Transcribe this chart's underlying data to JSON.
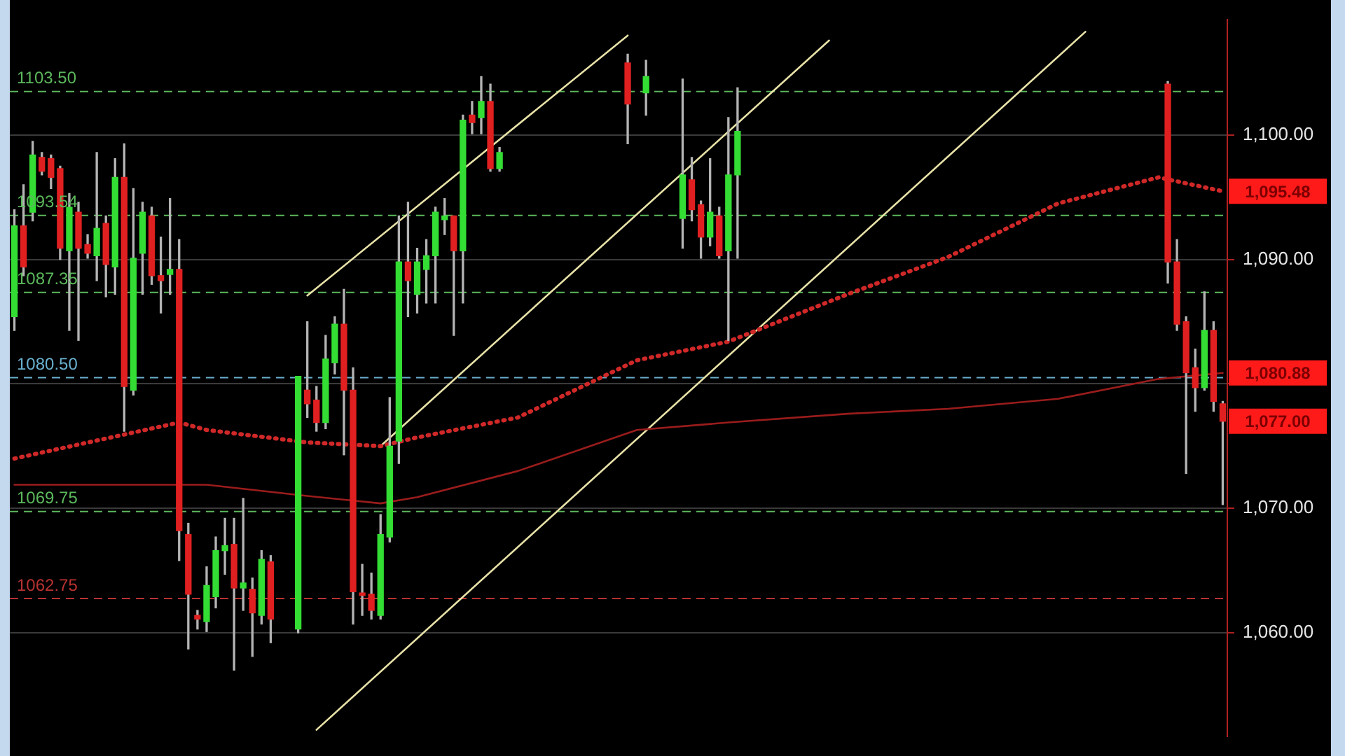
{
  "chart_data": {
    "type": "candlestick",
    "categories": [
      null,
      null,
      null,
      null,
      null,
      null,
      null,
      null,
      null,
      null,
      null,
      null,
      null,
      null,
      null,
      null,
      null,
      null,
      null,
      null,
      null,
      null,
      null,
      null,
      null,
      null,
      null,
      null,
      null,
      null,
      null,
      null,
      null,
      null,
      null,
      null,
      null,
      null,
      null,
      null,
      null,
      null,
      null,
      null,
      null,
      null,
      null,
      null,
      null,
      null,
      null,
      null,
      null,
      null,
      null,
      null,
      null,
      null,
      null,
      null,
      null,
      null,
      null,
      null,
      null,
      null,
      null,
      null,
      null,
      null,
      null,
      null,
      null,
      null,
      null,
      null,
      null,
      null,
      null,
      null,
      null,
      null,
      null,
      null,
      null,
      null,
      null,
      null,
      null,
      null,
      null,
      null,
      null,
      null,
      null,
      null,
      null,
      null,
      null,
      null,
      null,
      null,
      null,
      null,
      null,
      null,
      null,
      null,
      null,
      null,
      null,
      null,
      null,
      null,
      null,
      null,
      null,
      null,
      null,
      null,
      null,
      null,
      null,
      null,
      null,
      null,
      null,
      null,
      null,
      null,
      null,
      null,
      null
    ],
    "ohlc": [
      [
        1085.4,
        1094.0,
        1084.3,
        1092.7
      ],
      [
        1092.7,
        1096.0,
        1088.7,
        1089.4
      ],
      [
        1093.8,
        1099.5,
        1093.1,
        1098.4
      ],
      [
        1098.2,
        1098.6,
        1096.8,
        1097.1
      ],
      [
        1098.1,
        1098.4,
        1095.7,
        1096.6
      ],
      [
        1097.3,
        1097.5,
        1090.0,
        1090.9
      ],
      [
        1090.7,
        1095.3,
        1084.3,
        1094.2
      ],
      [
        1093.8,
        1094.6,
        1083.5,
        1090.9
      ],
      [
        1091.2,
        1092.0,
        1090.1,
        1090.5
      ],
      [
        1090.3,
        1098.6,
        1088.3,
        1092.5
      ],
      [
        1092.9,
        1093.5,
        1087.0,
        1089.6
      ],
      [
        1089.4,
        1098.1,
        1087.2,
        1096.6
      ],
      [
        1096.6,
        1099.3,
        1076.2,
        1079.8
      ],
      [
        1079.5,
        1095.7,
        1079.1,
        1090.1
      ],
      [
        1090.5,
        1094.6,
        1087.2,
        1093.8
      ],
      [
        1093.5,
        1094.2,
        1088.0,
        1088.7
      ],
      [
        1088.7,
        1091.8,
        1085.7,
        1088.3
      ],
      [
        1088.8,
        1094.9,
        1087.2,
        1089.2
      ],
      [
        1089.2,
        1091.6,
        1065.8,
        1068.2
      ],
      [
        1067.9,
        1068.8,
        1058.7,
        1063.1
      ],
      [
        1061.4,
        1061.8,
        1060.3,
        1061.1
      ],
      [
        1060.9,
        1065.3,
        1060.1,
        1063.8
      ],
      [
        1062.9,
        1067.7,
        1062.0,
        1066.6
      ],
      [
        1066.6,
        1069.2,
        1064.7,
        1067.0
      ],
      [
        1067.1,
        1069.2,
        1057.0,
        1063.6
      ],
      [
        1063.6,
        1070.8,
        1061.8,
        1064.0
      ],
      [
        1063.5,
        1064.4,
        1058.1,
        1061.6
      ],
      [
        1061.4,
        1066.6,
        1060.7,
        1065.9
      ],
      [
        1065.7,
        1066.2,
        1059.2,
        1061.1
      ],
      null,
      null,
      [
        1060.3,
        1080.6,
        1060.0,
        1080.6
      ],
      [
        1079.5,
        1085.0,
        1077.3,
        1078.4
      ],
      [
        1078.7,
        1079.8,
        1076.2,
        1076.9
      ],
      [
        1076.9,
        1083.9,
        1076.4,
        1082.0
      ],
      [
        1081.7,
        1085.4,
        1080.8,
        1084.8
      ],
      [
        1084.8,
        1087.6,
        1074.3,
        1079.5
      ],
      [
        1079.5,
        1081.3,
        1060.7,
        1063.3
      ],
      [
        1063.2,
        1065.5,
        1061.4,
        1063.0
      ],
      [
        1063.1,
        1064.8,
        1061.1,
        1061.8
      ],
      [
        1061.4,
        1069.5,
        1061.1,
        1067.9
      ],
      [
        1067.7,
        1078.9,
        1067.3,
        1075.0
      ],
      [
        1075.4,
        1093.5,
        1073.6,
        1089.8
      ],
      [
        1089.8,
        1094.6,
        1085.4,
        1088.3
      ],
      [
        1087.2,
        1090.9,
        1085.7,
        1089.8
      ],
      [
        1089.2,
        1091.6,
        1086.5,
        1090.3
      ],
      [
        1090.3,
        1094.2,
        1086.5,
        1093.8
      ],
      [
        1093.2,
        1094.9,
        1092.0,
        1093.5
      ],
      [
        1093.5,
        1093.5,
        1083.9,
        1090.7
      ],
      [
        1090.7,
        1101.6,
        1086.5,
        1101.2
      ],
      [
        1101.6,
        1102.7,
        1100.1,
        1101.0
      ],
      [
        1101.4,
        1104.7,
        1100.1,
        1102.7
      ],
      [
        1102.7,
        1104.1,
        1097.1,
        1097.3
      ],
      [
        1097.3,
        1099.0,
        1097.1,
        1098.6
      ],
      null,
      null,
      null,
      null,
      null,
      null,
      null,
      null,
      null,
      null,
      null,
      null,
      null,
      [
        1105.8,
        1106.5,
        1099.3,
        1102.5
      ],
      null,
      [
        1103.4,
        1106.0,
        1101.6,
        1104.7
      ],
      null,
      null,
      null,
      [
        1093.3,
        1104.5,
        1090.9,
        1096.8
      ],
      [
        1096.4,
        1098.2,
        1093.1,
        1094.0
      ],
      [
        1094.4,
        1094.7,
        1090.1,
        1091.8
      ],
      [
        1091.8,
        1098.1,
        1091.1,
        1093.8
      ],
      [
        1093.5,
        1094.2,
        1090.1,
        1090.3
      ],
      [
        1090.7,
        1101.4,
        1083.5,
        1096.8
      ],
      [
        1096.8,
        1103.8,
        1090.1,
        1100.3
      ],
      null,
      null,
      null,
      null,
      null,
      null,
      null,
      null,
      null,
      null,
      null,
      null,
      null,
      null,
      null,
      null,
      null,
      null,
      null,
      null,
      null,
      null,
      null,
      null,
      null,
      null,
      null,
      null,
      null,
      null,
      null,
      null,
      null,
      null,
      null,
      null,
      null,
      null,
      null,
      null,
      null,
      null,
      null,
      null,
      null,
      null,
      [
        1104.1,
        1104.3,
        1088.1,
        1089.8
      ],
      [
        1089.8,
        1091.6,
        1084.3,
        1084.8
      ],
      [
        1085.0,
        1085.4,
        1072.8,
        1080.9
      ],
      [
        1081.3,
        1082.8,
        1077.8,
        1079.7
      ],
      [
        1079.7,
        1087.4,
        1079.5,
        1084.3
      ],
      [
        1084.3,
        1085.0,
        1077.8,
        1078.6
      ],
      [
        1078.4,
        1078.6,
        1070.3,
        1077.0
      ]
    ],
    "value_labels": [
      null,
      null,
      null,
      null,
      null,
      null,
      null,
      null,
      null,
      null,
      null,
      null,
      null,
      null,
      null,
      null,
      null,
      null,
      null,
      null,
      null,
      null,
      null,
      null,
      null,
      null,
      null,
      null,
      null,
      null,
      null,
      null,
      null,
      null,
      null,
      null,
      null,
      null,
      null,
      null,
      null,
      null,
      null,
      null,
      null,
      null,
      null,
      null,
      null,
      null,
      null,
      null,
      null,
      null,
      null,
      null,
      null,
      null,
      null,
      null,
      null,
      null,
      null,
      null,
      null,
      null,
      null,
      null,
      null,
      null,
      null,
      null,
      null,
      null,
      null,
      null,
      null,
      null,
      null,
      null,
      null,
      null,
      null,
      null,
      null,
      null,
      null,
      null,
      null,
      null,
      null,
      null,
      null,
      null,
      null,
      null,
      null,
      null,
      null,
      null,
      null,
      null,
      null,
      null,
      null,
      null,
      null,
      null,
      null,
      null,
      null,
      null,
      null,
      null,
      null,
      null,
      null,
      null,
      null,
      null,
      null,
      null,
      null,
      null,
      null,
      null,
      null,
      null,
      null,
      null,
      null,
      null,
      "1,077.00"
    ],
    "colors": [
      "#33dd33",
      "#e02020",
      "#33dd33",
      "#e02020",
      "#e02020",
      "#e02020",
      "#33dd33",
      "#e02020",
      "#e02020",
      "#33dd33",
      "#e02020",
      "#33dd33",
      "#e02020",
      "#33dd33",
      "#33dd33",
      "#e02020",
      "#e02020",
      "#33dd33",
      "#e02020",
      "#e02020",
      "#e02020",
      "#33dd33",
      "#33dd33",
      "#33dd33",
      "#e02020",
      "#33dd33",
      "#e02020",
      "#33dd33",
      "#e02020",
      null,
      null,
      "#33dd33",
      "#e02020",
      "#e02020",
      "#33dd33",
      "#33dd33",
      "#e02020",
      "#e02020",
      "#e02020",
      "#e02020",
      "#33dd33",
      "#33dd33",
      "#33dd33",
      "#e02020",
      "#33dd33",
      "#33dd33",
      "#33dd33",
      "#33dd33",
      "#e02020",
      "#33dd33",
      "#e02020",
      "#33dd33",
      "#e02020",
      "#33dd33",
      null,
      null,
      null,
      null,
      null,
      null,
      null,
      null,
      null,
      null,
      null,
      null,
      null,
      "#e02020",
      null,
      "#33dd33",
      null,
      null,
      null,
      "#33dd33",
      "#e02020",
      "#e02020",
      "#33dd33",
      "#e02020",
      "#33dd33",
      "#33dd33",
      null,
      null,
      null,
      null,
      null,
      null,
      null,
      null,
      null,
      null,
      null,
      null,
      null,
      null,
      null,
      null,
      null,
      null,
      null,
      null,
      null,
      null,
      null,
      null,
      null,
      null,
      null,
      null,
      null,
      null,
      null,
      null,
      null,
      null,
      null,
      null,
      null,
      null,
      null,
      null,
      null,
      null,
      null,
      null,
      null,
      null,
      "#e02020",
      "#e02020",
      "#e02020",
      "#e02020",
      "#33dd33",
      "#e02020",
      "#e02020"
    ],
    "series": [
      {
        "type": "line",
        "color": "#d02828",
        "line_style": "dotted",
        "value_labels": [
          null,
          null,
          null,
          null,
          null,
          null,
          null,
          null,
          null,
          null,
          null,
          null,
          null,
          null,
          null,
          null,
          null,
          null,
          null,
          null,
          null,
          null,
          null,
          null,
          null,
          null,
          null,
          null,
          null,
          null,
          null,
          null,
          null,
          null,
          null,
          null,
          null,
          null,
          null,
          null,
          null,
          null,
          null,
          null,
          null,
          null,
          null,
          null,
          null,
          null,
          null,
          null,
          null,
          null,
          null,
          null,
          null,
          null,
          null,
          null,
          null,
          null,
          null,
          null,
          null,
          null,
          null,
          null,
          null,
          null,
          null,
          null,
          null,
          null,
          null,
          null,
          null,
          null,
          null,
          null,
          null,
          null,
          null,
          null,
          null,
          null,
          null,
          null,
          null,
          null,
          null,
          null,
          null,
          null,
          null,
          null,
          null,
          null,
          null,
          null,
          null,
          null,
          null,
          null,
          null,
          null,
          null,
          null,
          null,
          null,
          null,
          null,
          null,
          null,
          null,
          null,
          null,
          null,
          null,
          null,
          null,
          null,
          null,
          null,
          null,
          null,
          null,
          null,
          null,
          null,
          null,
          null,
          "1,095.48"
        ],
        "values": [
          1074.0,
          null,
          null,
          null,
          null,
          null,
          null,
          null,
          null,
          null,
          null,
          null,
          null,
          null,
          null,
          null,
          null,
          null,
          1076.9,
          null,
          null,
          1076.3,
          null,
          null,
          null,
          null,
          null,
          null,
          null,
          null,
          null,
          null,
          1075.3,
          null,
          null,
          null,
          null,
          null,
          null,
          null,
          1075.0,
          null,
          null,
          null,
          1075.7,
          null,
          null,
          null,
          null,
          null,
          null,
          null,
          null,
          null,
          null,
          1077.3,
          null,
          null,
          null,
          null,
          null,
          null,
          null,
          null,
          null,
          null,
          null,
          null,
          1081.9,
          null,
          null,
          null,
          null,
          null,
          null,
          null,
          null,
          null,
          1083.4,
          null,
          null,
          null,
          null,
          null,
          null,
          null,
          null,
          null,
          null,
          null,
          null,
          1087.2,
          null,
          null,
          null,
          null,
          null,
          null,
          null,
          null,
          null,
          null,
          1090.2,
          null,
          null,
          null,
          null,
          null,
          null,
          null,
          null,
          null,
          null,
          null,
          1094.5,
          null,
          null,
          null,
          null,
          null,
          null,
          null,
          null,
          null,
          null,
          1096.6,
          null,
          null,
          null,
          null,
          null,
          null,
          1095.48
        ]
      },
      {
        "type": "line",
        "color": "#9a1c1c",
        "line_style": "solid",
        "value_labels": [
          null,
          null,
          null,
          null,
          null,
          null,
          null,
          null,
          null,
          null,
          null,
          null,
          null,
          null,
          null,
          null,
          null,
          null,
          null,
          null,
          null,
          null,
          null,
          null,
          null,
          null,
          null,
          null,
          null,
          null,
          null,
          null,
          null,
          null,
          null,
          null,
          null,
          null,
          null,
          null,
          null,
          null,
          null,
          null,
          null,
          null,
          null,
          null,
          null,
          null,
          null,
          null,
          null,
          null,
          null,
          null,
          null,
          null,
          null,
          null,
          null,
          null,
          null,
          null,
          null,
          null,
          null,
          null,
          null,
          null,
          null,
          null,
          null,
          null,
          null,
          null,
          null,
          null,
          null,
          null,
          null,
          null,
          null,
          null,
          null,
          null,
          null,
          null,
          null,
          null,
          null,
          null,
          null,
          null,
          null,
          null,
          null,
          null,
          null,
          null,
          null,
          null,
          null,
          null,
          null,
          null,
          null,
          null,
          null,
          null,
          null,
          null,
          null,
          null,
          null,
          null,
          null,
          null,
          null,
          null,
          null,
          null,
          null,
          null,
          null,
          null,
          null,
          null,
          null,
          null,
          null,
          null,
          "1,080.88"
        ],
        "values": [
          1071.9,
          null,
          null,
          null,
          null,
          null,
          null,
          null,
          null,
          null,
          null,
          null,
          null,
          null,
          null,
          null,
          null,
          null,
          null,
          null,
          null,
          1071.9,
          null,
          null,
          null,
          null,
          null,
          null,
          null,
          null,
          null,
          null,
          1071.0,
          null,
          null,
          null,
          null,
          null,
          null,
          null,
          1070.4,
          null,
          null,
          null,
          1070.9,
          null,
          null,
          null,
          null,
          null,
          null,
          null,
          null,
          null,
          null,
          1073.0,
          null,
          null,
          null,
          null,
          null,
          null,
          null,
          null,
          null,
          null,
          null,
          null,
          1076.3,
          null,
          null,
          null,
          null,
          null,
          null,
          null,
          null,
          null,
          1076.9,
          null,
          null,
          null,
          null,
          null,
          null,
          null,
          null,
          null,
          null,
          null,
          null,
          1077.6,
          null,
          null,
          null,
          null,
          null,
          null,
          null,
          null,
          null,
          null,
          1078.0,
          null,
          null,
          null,
          null,
          null,
          null,
          null,
          null,
          null,
          null,
          null,
          1078.8,
          null,
          null,
          null,
          null,
          null,
          null,
          null,
          null,
          null,
          null,
          1080.4,
          null,
          null,
          null,
          null,
          null,
          null,
          1080.88
        ]
      },
      {
        "type": "line",
        "color": "#e8e2a8",
        "line_style": "solid",
        "values": [
          null,
          null,
          null,
          null,
          null,
          null,
          null,
          null,
          null,
          null,
          null,
          null,
          null,
          null,
          null,
          null,
          null,
          null,
          null,
          null,
          null,
          null,
          null,
          null,
          null,
          null,
          null,
          null,
          null,
          null,
          null,
          null,
          1087.1,
          null,
          null,
          null,
          null,
          null,
          null,
          null,
          null,
          null,
          null,
          null,
          null,
          null,
          null,
          null,
          null,
          null,
          null,
          null,
          null,
          null,
          null,
          null,
          null,
          null,
          null,
          null,
          null,
          null,
          null,
          null,
          null,
          null,
          null,
          1108.0,
          null,
          null,
          null,
          null,
          null,
          null,
          null,
          null,
          null,
          null,
          null,
          null,
          null,
          null,
          null,
          null,
          null,
          null,
          null,
          null,
          null,
          null,
          null,
          null,
          null,
          null,
          null,
          null,
          null,
          null,
          null,
          null,
          null,
          null,
          null,
          null,
          null,
          null,
          null,
          null,
          null,
          null,
          null,
          null,
          null,
          null,
          null,
          null,
          null,
          null,
          null,
          null,
          null,
          null,
          null,
          null,
          null,
          null,
          null,
          null,
          null,
          null,
          null,
          null,
          null
        ]
      },
      {
        "type": "line",
        "color": "#e8e2a8",
        "line_style": "solid",
        "values": [
          null,
          null,
          null,
          null,
          null,
          null,
          null,
          null,
          null,
          null,
          null,
          null,
          null,
          null,
          null,
          null,
          null,
          null,
          null,
          null,
          null,
          null,
          null,
          null,
          null,
          null,
          null,
          null,
          null,
          null,
          null,
          null,
          null,
          null,
          null,
          null,
          null,
          null,
          null,
          null,
          1075.0,
          null,
          null,
          null,
          null,
          null,
          null,
          null,
          null,
          null,
          null,
          null,
          null,
          null,
          null,
          null,
          null,
          null,
          null,
          null,
          null,
          null,
          null,
          null,
          null,
          null,
          null,
          null,
          null,
          null,
          null,
          null,
          null,
          null,
          null,
          null,
          null,
          null,
          null,
          null,
          null,
          null,
          null,
          null,
          null,
          null,
          null,
          null,
          null,
          1107.6,
          null,
          null,
          null,
          null,
          null,
          null,
          null,
          null,
          null,
          null,
          null,
          null,
          null,
          null,
          null,
          null,
          null,
          null,
          null,
          null,
          null,
          null,
          null,
          null,
          null,
          null,
          null,
          null,
          null,
          null,
          null,
          null,
          null,
          null,
          null,
          null,
          null,
          null,
          null,
          null,
          null,
          null,
          null
        ]
      },
      {
        "type": "line",
        "color": "#e8e2a8",
        "line_style": "solid",
        "values": [
          null,
          null,
          null,
          null,
          null,
          null,
          null,
          null,
          null,
          null,
          null,
          null,
          null,
          null,
          null,
          null,
          null,
          null,
          null,
          null,
          null,
          null,
          null,
          null,
          null,
          null,
          null,
          null,
          null,
          null,
          null,
          null,
          null,
          1052.2,
          null,
          null,
          null,
          null,
          null,
          null,
          null,
          null,
          null,
          null,
          null,
          null,
          null,
          null,
          null,
          null,
          null,
          null,
          null,
          null,
          null,
          null,
          null,
          null,
          null,
          null,
          null,
          null,
          null,
          null,
          null,
          null,
          null,
          null,
          null,
          null,
          null,
          null,
          null,
          null,
          null,
          null,
          null,
          null,
          null,
          null,
          null,
          null,
          null,
          null,
          null,
          null,
          null,
          null,
          null,
          null,
          null,
          null,
          null,
          null,
          null,
          null,
          null,
          null,
          null,
          null,
          null,
          null,
          null,
          null,
          null,
          null,
          null,
          null,
          null,
          null,
          null,
          null,
          null,
          null,
          null,
          null,
          null,
          1108.3,
          null,
          null,
          null,
          null,
          null,
          null,
          null,
          null,
          null,
          null,
          null,
          null,
          null,
          null,
          null
        ]
      }
    ],
    "ylim": [
      1051.65,
      1109.3
    ],
    "yticks": [
      {
        "value": 1060,
        "label": "1,060.00"
      },
      {
        "value": 1070,
        "label": "1,070.00"
      },
      {
        "value": 1080,
        "label": null
      },
      {
        "value": 1090,
        "label": "1,090.00"
      },
      {
        "value": 1100,
        "label": "1,100.00"
      }
    ],
    "ref_lines": [
      {
        "axis": "y",
        "value": 1103.5,
        "label": "1103.50",
        "color": "#5cb85c",
        "line_style": "dashed"
      },
      {
        "axis": "y",
        "value": 1093.54,
        "label": "1093.54",
        "color": "#5cb85c",
        "line_style": "dashed"
      },
      {
        "axis": "y",
        "value": 1087.35,
        "label": "1087.35",
        "color": "#5cb85c",
        "line_style": "dashed"
      },
      {
        "axis": "y",
        "value": 1080.5,
        "label": "1080.50",
        "color": "#6ab0d0",
        "line_style": "dashed"
      },
      {
        "axis": "y",
        "value": 1069.75,
        "label": "1069.75",
        "color": "#5cb85c",
        "line_style": "dashed"
      },
      {
        "axis": "y",
        "value": 1062.75,
        "label": "1062.75",
        "color": "#b83232",
        "line_style": "dashed"
      }
    ],
    "grid": "y",
    "tick_labels": "y"
  }
}
